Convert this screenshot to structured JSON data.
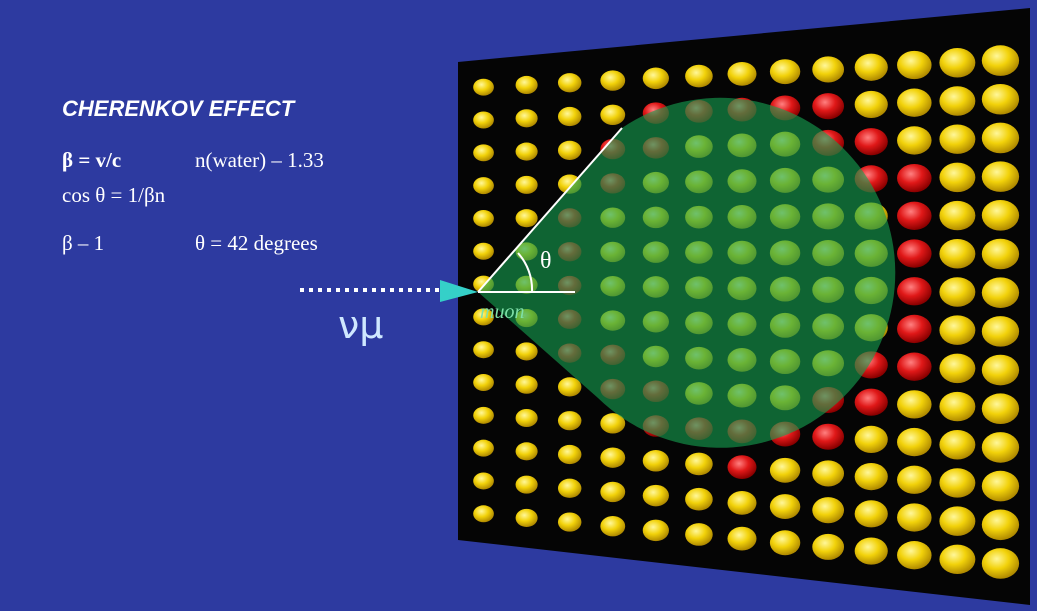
{
  "title": "CHERENKOV EFFECT",
  "equations": [
    "β = v/c",
    "n(water) – 1.33",
    "cos θ = 1/βn",
    "β – 1",
    "θ = 42 degrees"
  ],
  "angle_label": "θ",
  "particle_label": "νμ",
  "muon_label": "muon"
}
